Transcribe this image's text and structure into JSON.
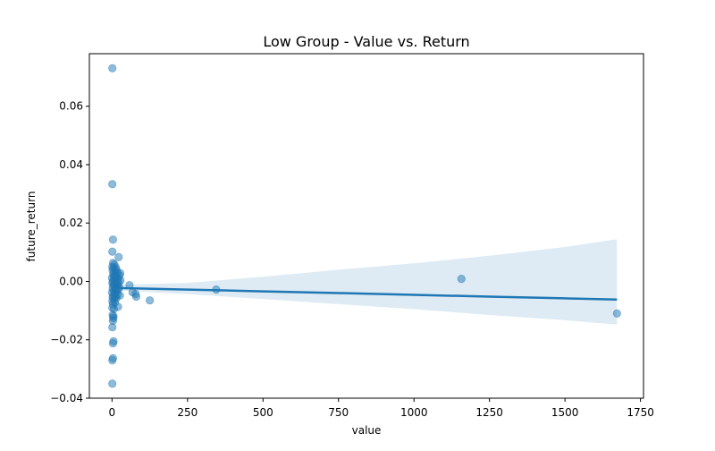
{
  "chart_data": {
    "type": "scatter",
    "title": "Low Group - Value vs. Return",
    "xlabel": "value",
    "ylabel": "future_return",
    "xlim": [
      -75,
      1760
    ],
    "ylim": [
      -0.04,
      0.078
    ],
    "xticks": [
      0,
      250,
      500,
      750,
      1000,
      1250,
      1500,
      1750
    ],
    "xtick_labels": [
      "0",
      "250",
      "500",
      "750",
      "1000",
      "1250",
      "1500",
      "1750"
    ],
    "yticks": [
      -0.04,
      -0.02,
      0.0,
      0.02,
      0.04,
      0.06
    ],
    "ytick_labels": [
      "−0.04",
      "−0.02",
      "0.00",
      "0.02",
      "0.04",
      "0.06"
    ],
    "grid": false,
    "legend": "none",
    "colors": {
      "points": "#1f77b4",
      "line": "#1f77b4",
      "band": "#1f77b4"
    },
    "points": [
      {
        "x": 1,
        "y": 0.073
      },
      {
        "x": 1,
        "y": 0.0333
      },
      {
        "x": 3,
        "y": 0.0143
      },
      {
        "x": 1,
        "y": 0.0102
      },
      {
        "x": 22,
        "y": 0.0083
      },
      {
        "x": 3,
        "y": 0.0063
      },
      {
        "x": 8,
        "y": 0.0058
      },
      {
        "x": 1,
        "y": 0.005
      },
      {
        "x": 12,
        "y": 0.0048
      },
      {
        "x": 5,
        "y": 0.0045
      },
      {
        "x": 15,
        "y": 0.004
      },
      {
        "x": 2,
        "y": 0.0038
      },
      {
        "x": 9,
        "y": 0.0035
      },
      {
        "x": 18,
        "y": 0.003
      },
      {
        "x": 27,
        "y": 0.0028
      },
      {
        "x": 4,
        "y": 0.0025
      },
      {
        "x": 11,
        "y": 0.0022
      },
      {
        "x": 25,
        "y": 0.002
      },
      {
        "x": 6,
        "y": 0.0018
      },
      {
        "x": 14,
        "y": 0.0015
      },
      {
        "x": 0,
        "y": 0.0012
      },
      {
        "x": 20,
        "y": 0.001
      },
      {
        "x": 7,
        "y": 0.0008
      },
      {
        "x": 16,
        "y": 0.0005
      },
      {
        "x": 28,
        "y": 0.0003
      },
      {
        "x": 3,
        "y": 0.0001
      },
      {
        "x": 10,
        "y": -0.0002
      },
      {
        "x": 22,
        "y": -0.0004
      },
      {
        "x": 1,
        "y": -0.0006
      },
      {
        "x": 13,
        "y": -0.0008
      },
      {
        "x": 19,
        "y": -0.0011
      },
      {
        "x": 5,
        "y": -0.0013
      },
      {
        "x": 58,
        "y": -0.0013
      },
      {
        "x": 8,
        "y": -0.0016
      },
      {
        "x": 17,
        "y": -0.0018
      },
      {
        "x": 24,
        "y": -0.002
      },
      {
        "x": 2,
        "y": -0.0023
      },
      {
        "x": 12,
        "y": -0.0026
      },
      {
        "x": 21,
        "y": -0.0028
      },
      {
        "x": 6,
        "y": -0.0031
      },
      {
        "x": 15,
        "y": -0.0034
      },
      {
        "x": 68,
        "y": -0.0037
      },
      {
        "x": 0,
        "y": -0.0038
      },
      {
        "x": 9,
        "y": -0.0041
      },
      {
        "x": 78,
        "y": -0.0043
      },
      {
        "x": 18,
        "y": -0.0045
      },
      {
        "x": 4,
        "y": -0.0048
      },
      {
        "x": 26,
        "y": -0.0048
      },
      {
        "x": 11,
        "y": -0.0052
      },
      {
        "x": 80,
        "y": -0.0052
      },
      {
        "x": 2,
        "y": -0.0055
      },
      {
        "x": 14,
        "y": -0.0058
      },
      {
        "x": 7,
        "y": -0.0062
      },
      {
        "x": 125,
        "y": -0.0065
      },
      {
        "x": 1,
        "y": -0.0068
      },
      {
        "x": 10,
        "y": -0.0072
      },
      {
        "x": 3,
        "y": -0.0078
      },
      {
        "x": 20,
        "y": -0.0087
      },
      {
        "x": 1,
        "y": -0.009
      },
      {
        "x": 6,
        "y": -0.0094
      },
      {
        "x": 2,
        "y": -0.0115
      },
      {
        "x": 5,
        "y": -0.012
      },
      {
        "x": 4,
        "y": -0.0126
      },
      {
        "x": 3,
        "y": -0.0135
      },
      {
        "x": 1,
        "y": -0.0157
      },
      {
        "x": 5,
        "y": -0.0205
      },
      {
        "x": 3,
        "y": -0.0212
      },
      {
        "x": 3,
        "y": -0.0263
      },
      {
        "x": 1,
        "y": -0.027
      },
      {
        "x": 1,
        "y": -0.035
      },
      {
        "x": 345,
        "y": -0.0028
      },
      {
        "x": 1157,
        "y": 0.0009
      },
      {
        "x": 1672,
        "y": -0.011
      }
    ],
    "regression": {
      "x": [
        0,
        250,
        500,
        750,
        1000,
        1250,
        1500,
        1672
      ],
      "y": [
        -0.0022,
        -0.0028,
        -0.0034,
        -0.004,
        -0.0046,
        -0.0052,
        -0.0058,
        -0.0062
      ],
      "ci_upper": [
        -0.0012,
        -0.0005,
        0.0016,
        0.004,
        0.0062,
        0.0088,
        0.0118,
        0.0145
      ],
      "ci_lower": [
        -0.003,
        -0.0044,
        -0.006,
        -0.0078,
        -0.0095,
        -0.0115,
        -0.0133,
        -0.0148
      ]
    }
  }
}
